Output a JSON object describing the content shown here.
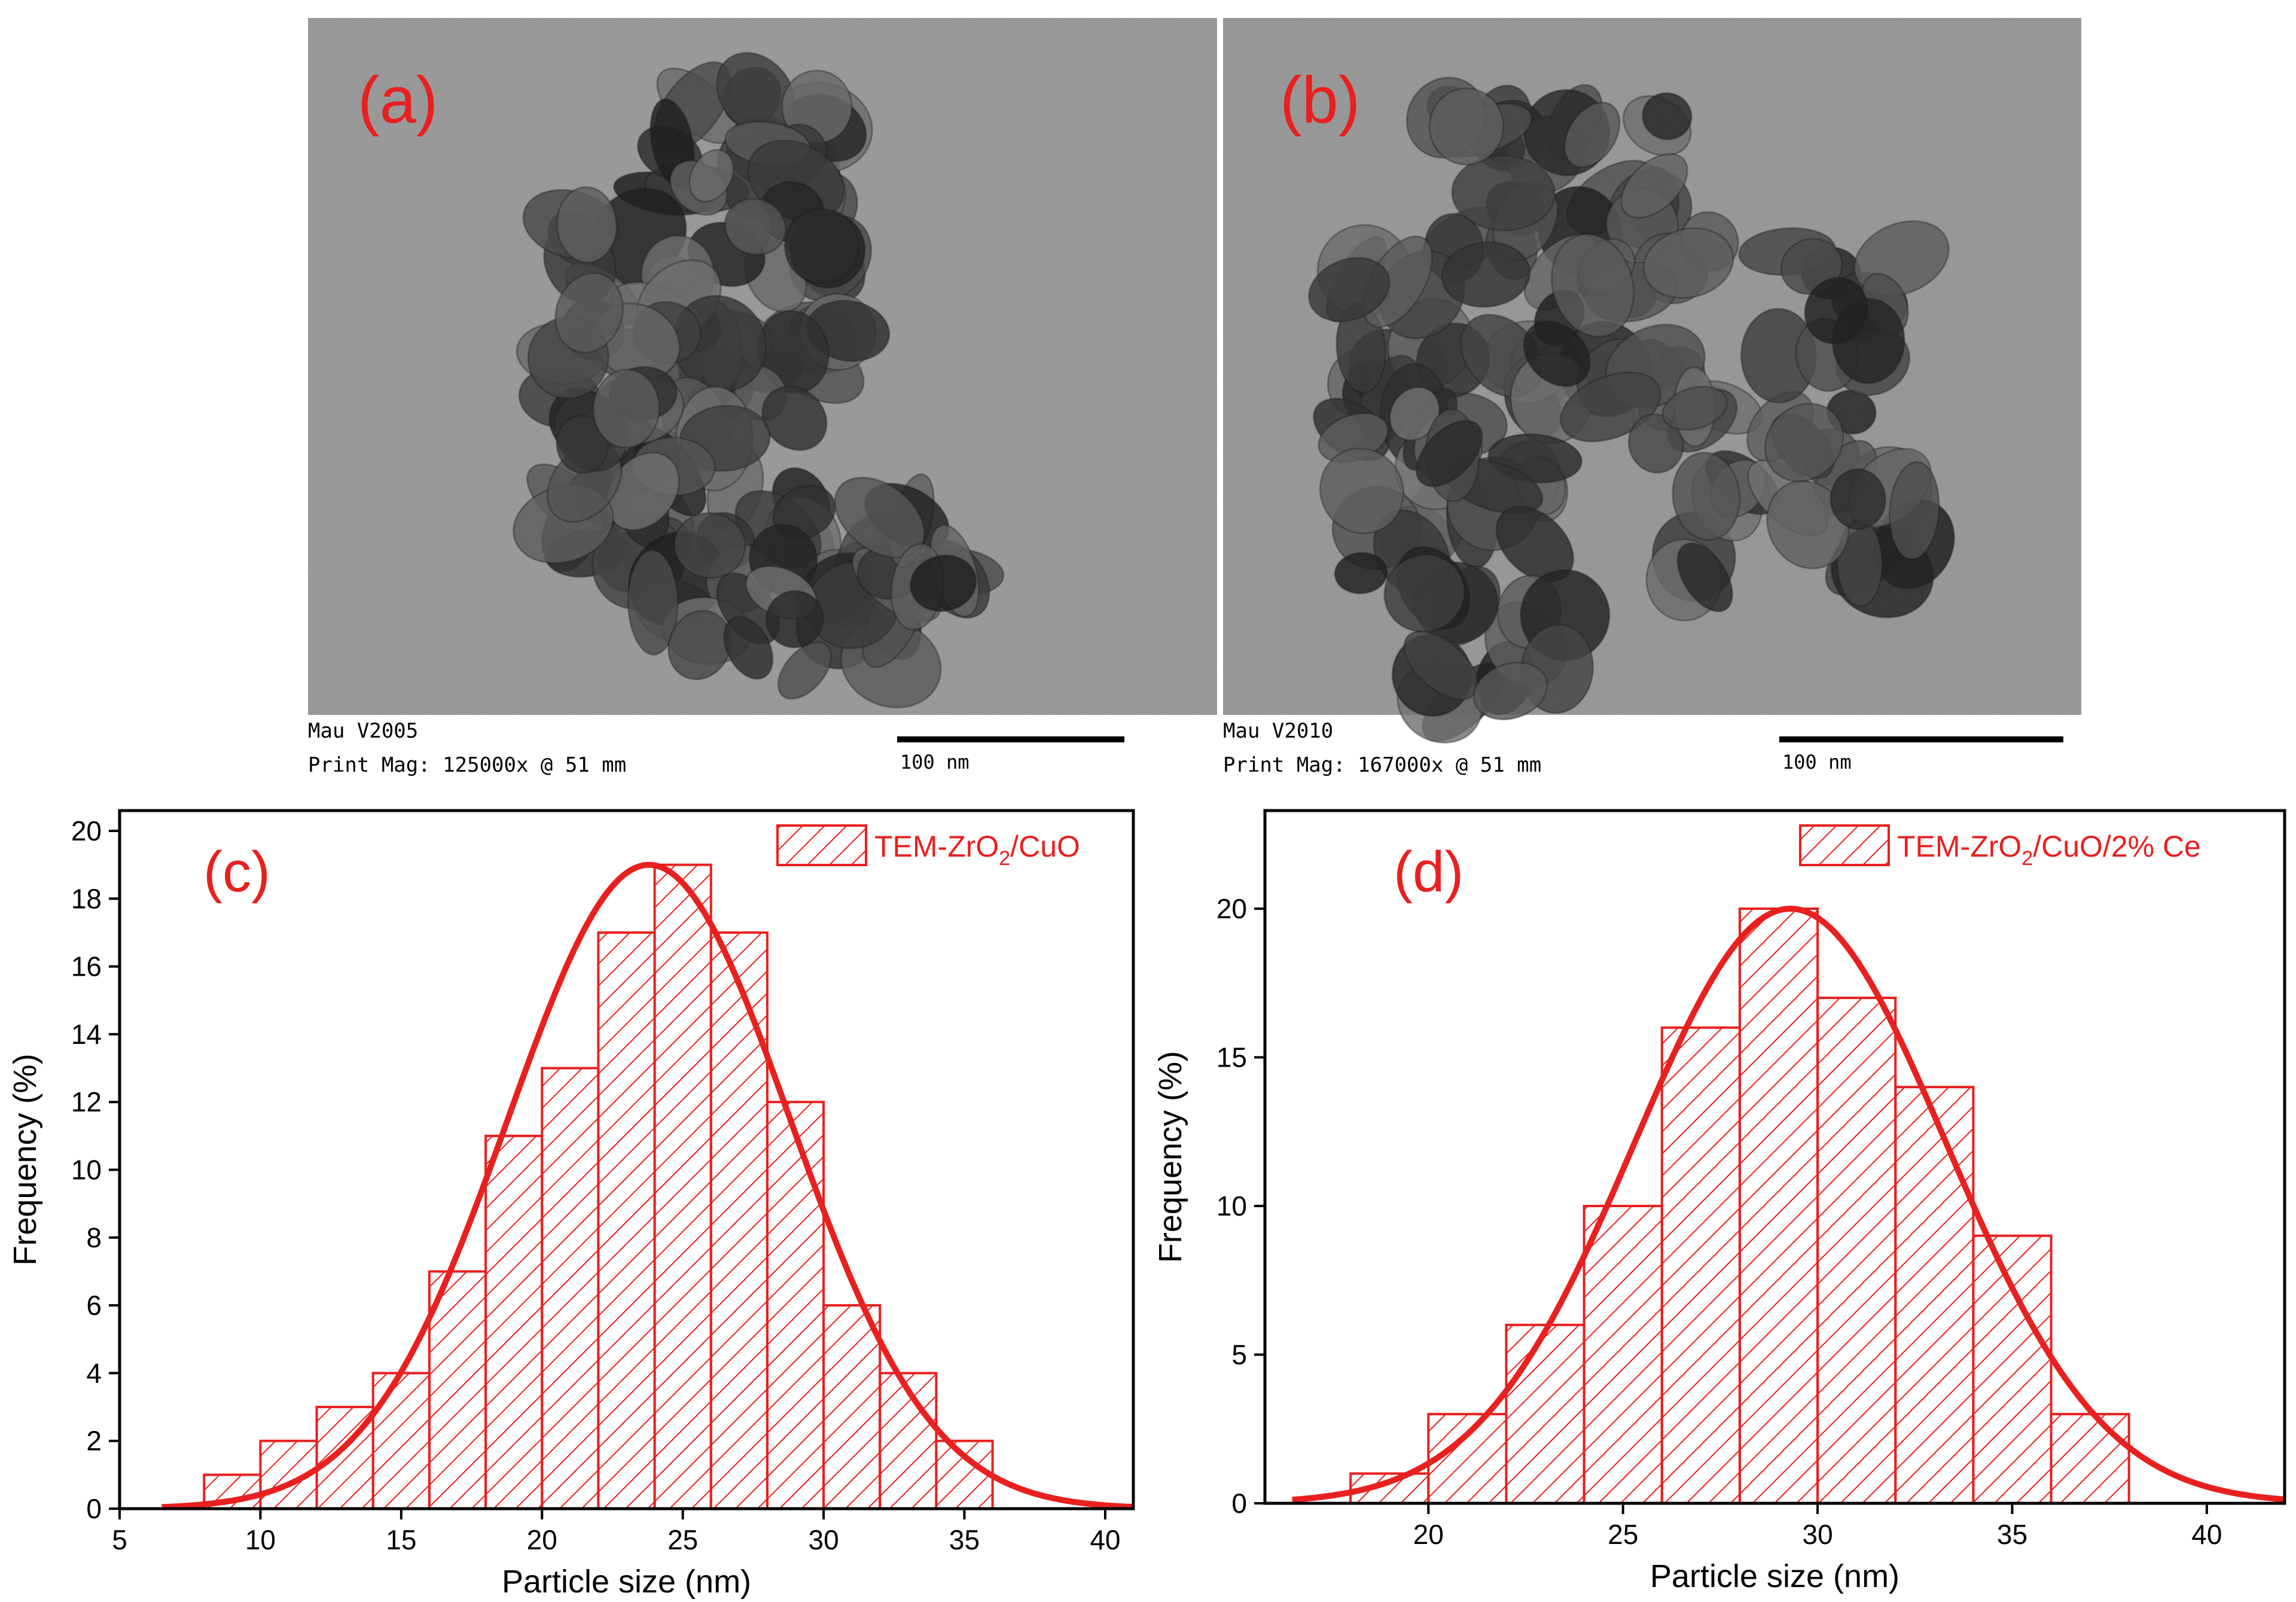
{
  "panels": {
    "a": {
      "label": "(a)",
      "caption_line1": "Mau V2005",
      "caption_line2": "Print Mag: 125000x @ 51 mm",
      "scale_bar_text": "100 nm"
    },
    "b": {
      "label": "(b)",
      "caption_line1": "Mau V2010",
      "caption_line2": "Print Mag: 167000x @ 51 mm",
      "scale_bar_text": "100 nm"
    }
  },
  "colors": {
    "series": "#e8201f",
    "tem_background": "#a9a9a9",
    "particle_dark": "#2b2b2b",
    "axis": "#000000"
  },
  "chart_data": [
    {
      "panel_label": "(c)",
      "type": "bar",
      "subtype": "histogram",
      "legend": "TEM-ZrO2/CuO",
      "legend_position": "top-right",
      "xlabel": "Particle size (nm)",
      "ylabel": "Frequency (%)",
      "xlim": [
        5,
        41
      ],
      "ylim": [
        0,
        20.6
      ],
      "xticks": [
        5,
        10,
        15,
        20,
        25,
        30,
        35,
        40
      ],
      "yticks": [
        0,
        2,
        4,
        6,
        8,
        10,
        12,
        14,
        16,
        18,
        20
      ],
      "bin_width": 2,
      "bin_starts": [
        8,
        10,
        12,
        14,
        16,
        18,
        20,
        22,
        24,
        26,
        28,
        30,
        32,
        34
      ],
      "values": [
        1,
        2,
        3,
        4,
        7,
        11,
        13,
        17,
        19,
        17,
        12,
        6,
        4,
        2
      ],
      "fit": {
        "type": "gaussian",
        "center": 23.8,
        "peak": 19,
        "sigma": 5.0,
        "x_range": [
          6.5,
          41
        ]
      }
    },
    {
      "panel_label": "(d)",
      "type": "bar",
      "subtype": "histogram",
      "legend": "TEM-ZrO2/CuO/2% Ce",
      "legend_position": "top-right",
      "xlabel": "Particle size (nm)",
      "ylabel": "Frequency (%)",
      "xlim": [
        15.8,
        42
      ],
      "ylim": [
        0,
        23.3
      ],
      "xticks": [
        20,
        25,
        30,
        35,
        40
      ],
      "yticks": [
        0,
        5,
        10,
        15,
        20
      ],
      "bin_width": 2,
      "bin_starts": [
        18,
        20,
        22,
        24,
        26,
        28,
        30,
        32,
        34,
        36
      ],
      "values": [
        1,
        3,
        6,
        10,
        16,
        20,
        17,
        14,
        9,
        3
      ],
      "fit": {
        "type": "gaussian",
        "center": 29.3,
        "peak": 20,
        "sigma": 4.0,
        "x_range": [
          16.5,
          42
        ]
      }
    }
  ]
}
